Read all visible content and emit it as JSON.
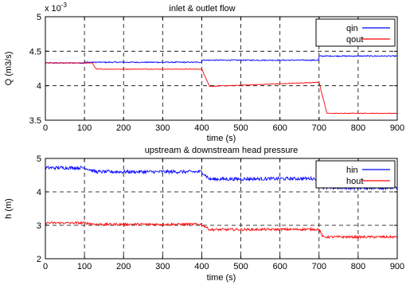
{
  "chart_data": [
    {
      "type": "line",
      "title": "inlet & outlet flow",
      "xlabel": "time (s)",
      "ylabel": "Q (m3/s)",
      "y_exponent_label": "x 10",
      "y_exponent_power": "-3",
      "xlim": [
        0,
        900
      ],
      "ylim": [
        3.5,
        5
      ],
      "x_ticks": [
        "0",
        "100",
        "200",
        "300",
        "400",
        "500",
        "600",
        "700",
        "800",
        "900"
      ],
      "y_ticks": [
        "3.5",
        "4",
        "4.5",
        "5"
      ],
      "grid": true,
      "legend_position": "top-right",
      "series": [
        {
          "name": "qin",
          "color": "#0000ff",
          "noise": 0.008,
          "x": [
            0,
            100,
            100,
            400,
            400,
            700,
            700,
            900
          ],
          "values": [
            4.33,
            4.33,
            4.34,
            4.34,
            4.37,
            4.37,
            4.43,
            4.43
          ]
        },
        {
          "name": "qout",
          "color": "#ff0000",
          "noise": 0.004,
          "x": [
            0,
            120,
            130,
            400,
            420,
            700,
            720,
            900
          ],
          "values": [
            4.33,
            4.33,
            4.24,
            4.24,
            3.99,
            4.05,
            3.6,
            3.6
          ]
        }
      ]
    },
    {
      "type": "line",
      "title": "upstream & downstream head pressure",
      "xlabel": "time (s)",
      "ylabel": "h (m)",
      "xlim": [
        0,
        900
      ],
      "ylim": [
        2,
        5
      ],
      "x_ticks": [
        "0",
        "100",
        "200",
        "300",
        "400",
        "500",
        "600",
        "700",
        "800",
        "900"
      ],
      "y_ticks": [
        "2",
        "3",
        "4",
        "5"
      ],
      "grid": true,
      "legend_position": "top-right",
      "series": [
        {
          "name": "hin",
          "color": "#0000ff",
          "noise": 0.05,
          "x": [
            0,
            100,
            130,
            400,
            420,
            700,
            710,
            900
          ],
          "values": [
            4.72,
            4.72,
            4.6,
            4.6,
            4.38,
            4.4,
            4.12,
            4.12
          ]
        },
        {
          "name": "hout",
          "color": "#ff0000",
          "noise": 0.035,
          "x": [
            0,
            100,
            130,
            400,
            420,
            700,
            710,
            900
          ],
          "values": [
            3.07,
            3.07,
            3.03,
            3.03,
            2.87,
            2.88,
            2.65,
            2.65
          ]
        }
      ]
    }
  ]
}
